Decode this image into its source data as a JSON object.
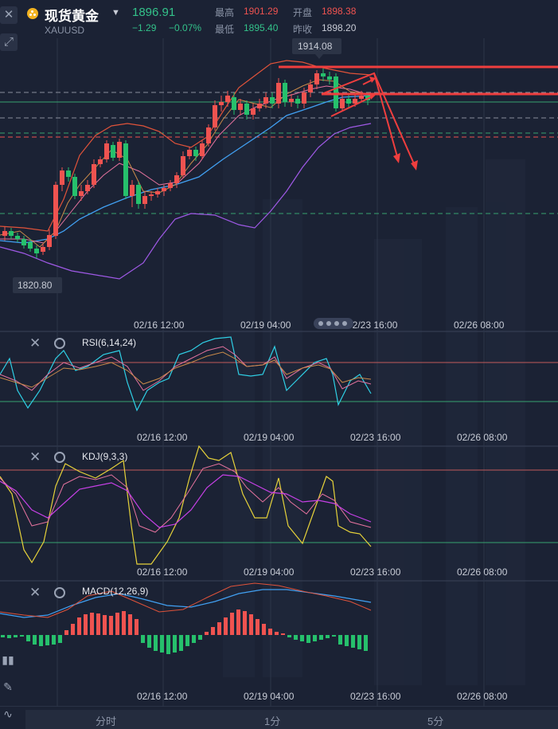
{
  "header": {
    "name": "现货黄金",
    "symbol": "XAUUSD",
    "price": "1896.91",
    "change": "−1.29",
    "change_pct": "−0.07%",
    "stats": [
      {
        "label": "最高",
        "value": "1901.29"
      },
      {
        "label": "开盘",
        "value": "1898.38"
      },
      {
        "label": "最低",
        "value": "1895.40"
      },
      {
        "label": "昨收",
        "value": "1898.20"
      }
    ]
  },
  "main_chart": {
    "high_tag": "1914.08",
    "low_tag": "1820.80",
    "xaxis": [
      "02/16 12:00",
      "02/19 04:00",
      "02/23 16:00",
      "02/26 08:00"
    ]
  },
  "rsi": {
    "title": "RSI(6,14,24)",
    "xaxis": [
      "02/16 12:00",
      "02/19 04:00",
      "02/23 16:00",
      "02/26 08:00"
    ]
  },
  "kdj": {
    "title": "KDJ(9,3,3)",
    "xaxis": [
      "02/16 12:00",
      "02/19 04:00",
      "02/23 16:00",
      "02/26 08:00"
    ]
  },
  "macd": {
    "title": "MACD(12,26,9)",
    "xaxis": [
      "02/16 12:00",
      "02/19 04:00",
      "02/23 16:00",
      "02/26 08:00"
    ]
  },
  "tabs": [
    "分时",
    "1分",
    "5分"
  ],
  "icons": [
    "close-icon",
    "expand-icon",
    "gear-icon",
    "candle-icon",
    "pencil-icon",
    "chart-icon"
  ],
  "colors": {
    "up": "#ef5350",
    "down": "#26c06c",
    "accent": "#f2b321"
  }
}
